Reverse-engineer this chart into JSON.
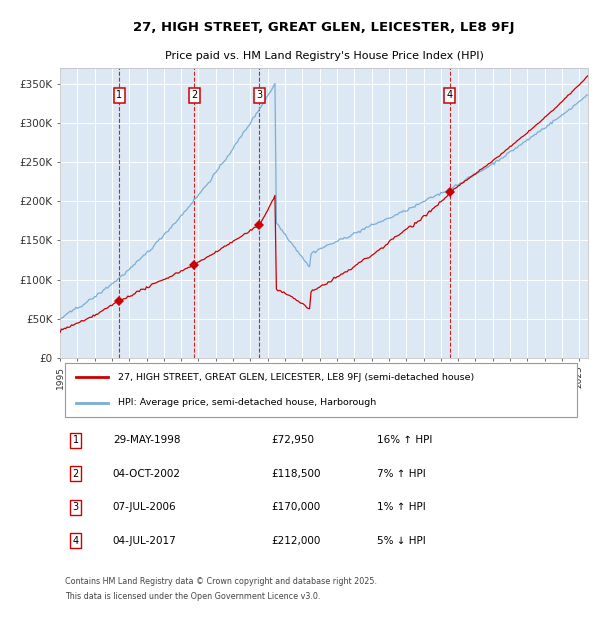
{
  "title": "27, HIGH STREET, GREAT GLEN, LEICESTER, LE8 9FJ",
  "subtitle": "Price paid vs. HM Land Registry's House Price Index (HPI)",
  "background_color": "#ffffff",
  "chart_bg_color": "#dce9f5",
  "grid_color": "#ffffff",
  "hpi_line_color": "#7aaed6",
  "price_line_color": "#cc0000",
  "marker_color": "#cc0000",
  "dashed_line_color": "#cc0000",
  "ylim": [
    0,
    370000
  ],
  "yticks": [
    0,
    50000,
    100000,
    150000,
    200000,
    250000,
    300000,
    350000
  ],
  "ytick_labels": [
    "£0",
    "£50K",
    "£100K",
    "£150K",
    "£200K",
    "£250K",
    "£300K",
    "£350K"
  ],
  "xlim_start": 1995.0,
  "xlim_end": 2025.5,
  "legend_line1": "27, HIGH STREET, GREAT GLEN, LEICESTER, LE8 9FJ (semi-detached house)",
  "legend_line2": "HPI: Average price, semi-detached house, Harborough",
  "transactions": [
    {
      "num": 1,
      "date": "29-MAY-1998",
      "x": 1998.41,
      "price": 72950,
      "pct": "16%",
      "dir": "↑"
    },
    {
      "num": 2,
      "date": "04-OCT-2002",
      "x": 2002.75,
      "price": 118500,
      "pct": "7%",
      "dir": "↑"
    },
    {
      "num": 3,
      "date": "07-JUL-2006",
      "x": 2006.51,
      "price": 170000,
      "pct": "1%",
      "dir": "↑"
    },
    {
      "num": 4,
      "date": "04-JUL-2017",
      "x": 2017.51,
      "price": 212000,
      "pct": "5%",
      "dir": "↓"
    }
  ],
  "table_rows": [
    [
      1,
      "29-MAY-1998",
      "£72,950",
      "16% ↑ HPI"
    ],
    [
      2,
      "04-OCT-2002",
      "£118,500",
      "7% ↑ HPI"
    ],
    [
      3,
      "07-JUL-2006",
      "£170,000",
      "1% ↑ HPI"
    ],
    [
      4,
      "04-JUL-2017",
      "£212,000",
      "5% ↓ HPI"
    ]
  ],
  "footnote_line1": "Contains HM Land Registry data © Crown copyright and database right 2025.",
  "footnote_line2": "This data is licensed under the Open Government Licence v3.0."
}
